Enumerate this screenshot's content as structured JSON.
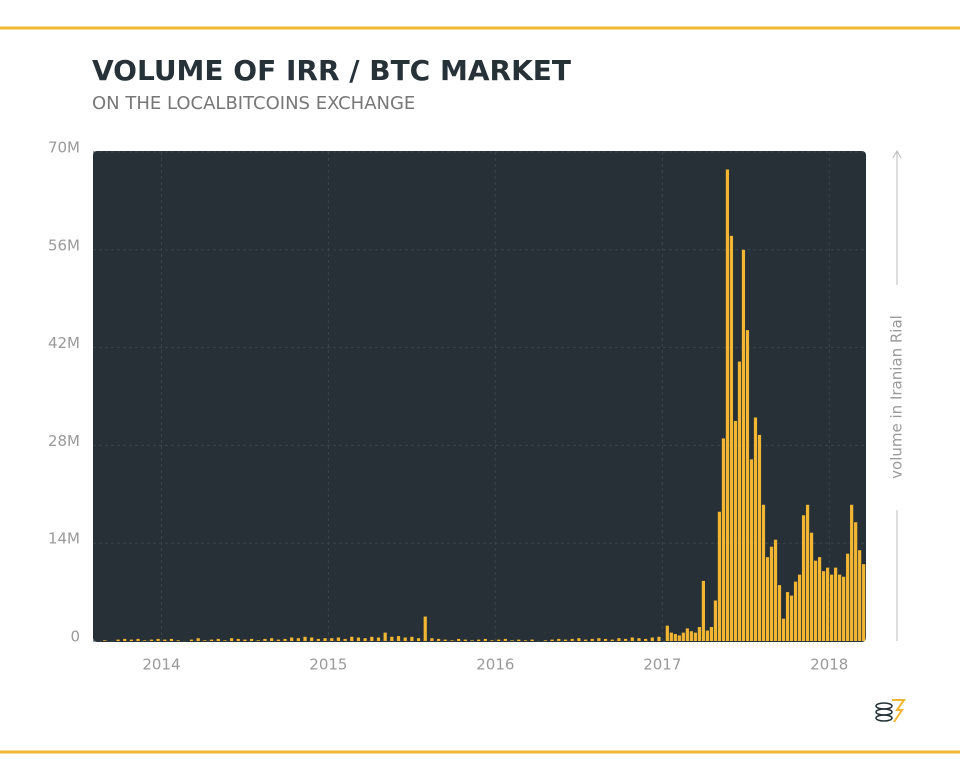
{
  "chart_data": {
    "type": "bar",
    "title": "VOLUME OF IRR / BTC MARKET",
    "subtitle": "ON THE LOCALBITCOINS EXCHANGE",
    "y_label": "volume in Iranian Rial",
    "color": "#f2b632",
    "grid": true,
    "xlim": [
      2013.59,
      2018.22
    ],
    "xticks": [
      2014,
      2015,
      2016,
      2017,
      2018
    ],
    "ylim": [
      0,
      70
    ],
    "yticks": [
      0,
      {
        "value": 14,
        "label": "14M"
      },
      {
        "value": 28,
        "label": "28M"
      },
      {
        "value": 42,
        "label": "42M"
      },
      {
        "value": 56,
        "label": "56M"
      },
      {
        "value": 70,
        "label": "70M"
      }
    ],
    "x": [
      2013.62,
      2013.66,
      2013.7,
      2013.74,
      2013.78,
      2013.82,
      2013.86,
      2013.9,
      2013.94,
      2013.98,
      2014.02,
      2014.06,
      2014.1,
      2014.14,
      2014.18,
      2014.22,
      2014.26,
      2014.3,
      2014.34,
      2014.38,
      2014.42,
      2014.46,
      2014.5,
      2014.54,
      2014.58,
      2014.62,
      2014.66,
      2014.7,
      2014.74,
      2014.78,
      2014.82,
      2014.86,
      2014.9,
      2014.94,
      2014.98,
      2015.02,
      2015.06,
      2015.1,
      2015.14,
      2015.18,
      2015.22,
      2015.26,
      2015.3,
      2015.34,
      2015.38,
      2015.42,
      2015.46,
      2015.5,
      2015.54,
      2015.58,
      2015.62,
      2015.66,
      2015.7,
      2015.74,
      2015.78,
      2015.82,
      2015.86,
      2015.9,
      2015.94,
      2015.98,
      2016.02,
      2016.06,
      2016.1,
      2016.14,
      2016.18,
      2016.22,
      2016.26,
      2016.3,
      2016.34,
      2016.38,
      2016.42,
      2016.46,
      2016.5,
      2016.54,
      2016.58,
      2016.62,
      2016.66,
      2016.7,
      2016.74,
      2016.78,
      2016.82,
      2016.86,
      2016.9,
      2016.94,
      2016.98,
      2017.03,
      2017.054,
      2017.078,
      2017.102,
      2017.126,
      2017.15,
      2017.174,
      2017.198,
      2017.222,
      2017.246,
      2017.27,
      2017.294,
      2017.318,
      2017.342,
      2017.366,
      2017.39,
      2017.414,
      2017.438,
      2017.462,
      2017.486,
      2017.51,
      2017.534,
      2017.558,
      2017.582,
      2017.606,
      2017.63,
      2017.654,
      2017.678,
      2017.702,
      2017.726,
      2017.75,
      2017.774,
      2017.798,
      2017.822,
      2017.846,
      2017.87,
      2017.894,
      2017.918,
      2017.942,
      2017.966,
      2017.99,
      2018.014,
      2018.038,
      2018.062,
      2018.086,
      2018.11,
      2018.134,
      2018.158,
      2018.182,
      2018.206
    ],
    "values": [
      0,
      0.1,
      0,
      0.2,
      0.3,
      0.2,
      0.3,
      0.1,
      0.2,
      0.3,
      0.2,
      0.3,
      0.1,
      0,
      0.2,
      0.4,
      0.1,
      0.2,
      0.3,
      0.1,
      0.4,
      0.3,
      0.2,
      0.3,
      0.1,
      0.3,
      0.4,
      0.2,
      0.3,
      0.5,
      0.4,
      0.6,
      0.5,
      0.3,
      0.4,
      0.4,
      0.5,
      0.3,
      0.6,
      0.5,
      0.4,
      0.6,
      0.5,
      1.2,
      0.6,
      0.7,
      0.5,
      0.6,
      0.4,
      3.5,
      0.4,
      0.3,
      0.2,
      0.1,
      0.3,
      0.2,
      0.1,
      0.2,
      0.3,
      0.1,
      0.2,
      0.3,
      0.1,
      0.2,
      0.1,
      0.2,
      0,
      0.1,
      0.2,
      0.3,
      0.2,
      0.3,
      0.4,
      0.2,
      0.3,
      0.4,
      0.3,
      0.2,
      0.4,
      0.3,
      0.5,
      0.4,
      0.3,
      0.5,
      0.6,
      2.2,
      1.2,
      1.0,
      0.8,
      1.2,
      1.8,
      1.4,
      1.2,
      2.0,
      8.6,
      1.5,
      2.0,
      5.8,
      18.5,
      29,
      67.5,
      58,
      31.5,
      40,
      56,
      44.5,
      26,
      32,
      29.5,
      19.5,
      12,
      13.5,
      14.5,
      8,
      3.2,
      7,
      6.5,
      8.5,
      9.5,
      18,
      19.5,
      15.5,
      11.5,
      12,
      10,
      10.5,
      9.5,
      10.5,
      9.5,
      9.2,
      12.5,
      19.5,
      17,
      13,
      11
    ]
  }
}
